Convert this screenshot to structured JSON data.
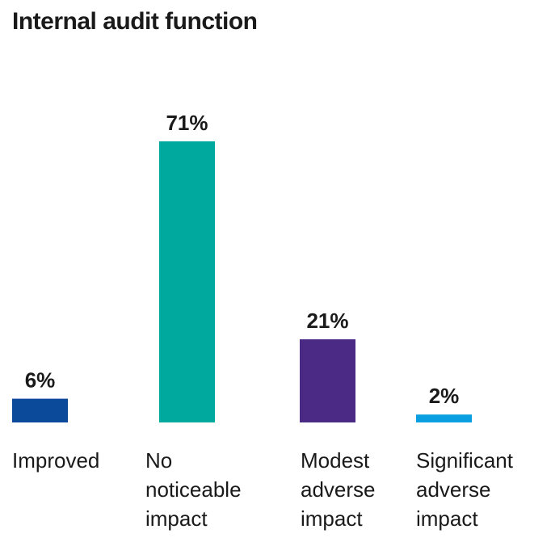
{
  "chart_data": {
    "type": "bar",
    "title": "Internal audit function",
    "categories": [
      "Improved",
      "No noticeable impact",
      "Modest adverse impact",
      "Significant adverse impact"
    ],
    "series": [
      {
        "name": null,
        "colors": [
          "#0b4a9b",
          "#00a99d",
          "#4b2a86",
          "#0a9fe0"
        ],
        "values": [
          6,
          71,
          21,
          2
        ],
        "value_labels": [
          "6%",
          "71%",
          "21%",
          "2%"
        ]
      }
    ]
  }
}
